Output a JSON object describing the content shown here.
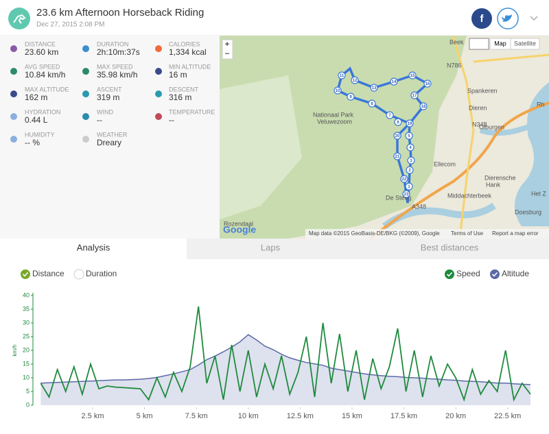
{
  "header": {
    "title": "23.6 km Afternoon Horseback Riding",
    "date": "Dec 27, 2015 2:08 PM",
    "facebook": "f"
  },
  "stats": [
    {
      "label": "DISTANCE",
      "value": "23.60 km"
    },
    {
      "label": "DURATION",
      "value": "2h:10m:37s"
    },
    {
      "label": "CALORIES",
      "value": "1,334 kcal"
    },
    {
      "label": "AVG SPEED",
      "value": "10.84 km/h"
    },
    {
      "label": "MAX SPEED",
      "value": "35.98 km/h"
    },
    {
      "label": "MIN ALTITUDE",
      "value": "16 m"
    },
    {
      "label": "MAX ALTITUDE",
      "value": "162 m"
    },
    {
      "label": "ASCENT",
      "value": "319 m"
    },
    {
      "label": "DESCENT",
      "value": "316 m"
    },
    {
      "label": "HYDRATION",
      "value": "0.44 L"
    },
    {
      "label": "WIND",
      "value": "--"
    },
    {
      "label": "TEMPERATURE",
      "value": "--"
    },
    {
      "label": "HUMIDITY",
      "value": "-- %"
    },
    {
      "label": "WEATHER",
      "value": "Dreary"
    }
  ],
  "map": {
    "zoom_in": "+",
    "zoom_out": "−",
    "map_button": "Map",
    "satellite_button": "Satellite",
    "places": [
      "Nationaal Park",
      "Veluwezoom",
      "Dieren",
      "Spankeren",
      "Olburgen",
      "Ellecom",
      "De Steeg",
      "Rozendaal",
      "Doesburg",
      "Middachterbeek",
      "Dierensche",
      "Hank",
      "Het Z",
      "Beek",
      "N786",
      "A348",
      "N348",
      "Rh"
    ],
    "markers": [
      "1",
      "2",
      "3",
      "4",
      "5",
      "6",
      "7",
      "8",
      "9",
      "10",
      "11",
      "12",
      "13",
      "14",
      "15",
      "16",
      "17",
      "18",
      "19",
      "20",
      "21",
      "22",
      "23"
    ],
    "logo": "Google",
    "attribution": "Map data ©2015 GeoBasis-DE/BKG (©2009), Google",
    "terms": "Terms of Use",
    "report": "Report a map error"
  },
  "tabs": [
    "Analysis",
    "Laps",
    "Best distances"
  ],
  "x_mode_options": [
    "Distance",
    "Duration"
  ],
  "chart": {
    "type": "line",
    "y_label": "km/h",
    "x": [
      0,
      0.4,
      0.8,
      1.2,
      1.6,
      2.0,
      2.4,
      2.8,
      3.2,
      3.6,
      4.0,
      4.4,
      4.8,
      5.2,
      5.6,
      6.0,
      6.4,
      6.8,
      7.2,
      7.6,
      8.0,
      8.4,
      8.8,
      9.2,
      9.6,
      10.0,
      10.4,
      10.8,
      11.2,
      11.6,
      12.0,
      12.4,
      12.8,
      13.2,
      13.6,
      14.0,
      14.4,
      14.8,
      15.2,
      15.6,
      16.0,
      16.4,
      16.8,
      17.2,
      17.6,
      18.0,
      18.4,
      18.8,
      19.2,
      19.6,
      20.0,
      20.4,
      20.8,
      21.2,
      21.6,
      22.0,
      22.4,
      22.8,
      23.2,
      23.6
    ],
    "series": [
      {
        "name": "Speed",
        "color": "#1e8a3c",
        "values": [
          8,
          3,
          13,
          5,
          14,
          4,
          15,
          6,
          7,
          6.6,
          6.4,
          6.2,
          6,
          2,
          10,
          3,
          12,
          5,
          14,
          36,
          8,
          18,
          2,
          22,
          5,
          20,
          3,
          15,
          6,
          18,
          4,
          12,
          25,
          3,
          30,
          8,
          26,
          5,
          20,
          2,
          17,
          6,
          14,
          28,
          5,
          20,
          3,
          18,
          7,
          15,
          10,
          2,
          13,
          4,
          9,
          5,
          20,
          2,
          8,
          4
        ]
      },
      {
        "name": "Altitude",
        "color": "#5b6aa8",
        "axis": "y2",
        "values": [
          24,
          25,
          26,
          27,
          28,
          29,
          30,
          31,
          32,
          33,
          33,
          34,
          35,
          37,
          40,
          45,
          50,
          56,
          62,
          75,
          90,
          100,
          112,
          125,
          140,
          160,
          145,
          128,
          118,
          105,
          95,
          88,
          82,
          78,
          74,
          66,
          62,
          58,
          54,
          50,
          47,
          45,
          43,
          42,
          40,
          39,
          38,
          36,
          35,
          33,
          32,
          30,
          29,
          28,
          26,
          24,
          24,
          22,
          21,
          20
        ]
      }
    ],
    "xlim": [
      0,
      23.6
    ],
    "xticks": [
      {
        "value": 2.5,
        "label": "2.5 km"
      },
      {
        "value": 5,
        "label": "5 km"
      },
      {
        "value": 7.5,
        "label": "7.5 km"
      },
      {
        "value": 10,
        "label": "10 km"
      },
      {
        "value": 12.5,
        "label": "12.5 km"
      },
      {
        "value": 15,
        "label": "15 km"
      },
      {
        "value": 17.5,
        "label": "17.5 km"
      },
      {
        "value": 20,
        "label": "20 km"
      },
      {
        "value": 22.5,
        "label": "22.5 km"
      }
    ],
    "ylim": [
      0,
      40
    ],
    "yticks": [
      0,
      5,
      10,
      15,
      20,
      25,
      30,
      35,
      40
    ],
    "y2lim": [
      -38,
      270
    ]
  }
}
